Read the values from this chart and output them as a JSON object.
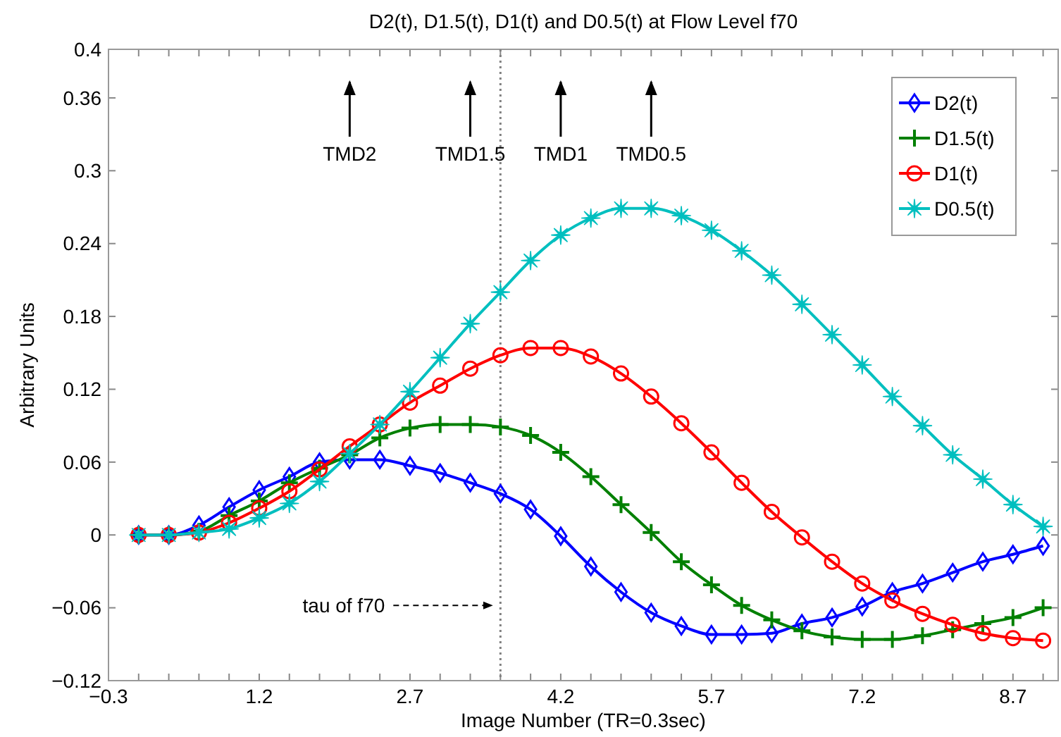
{
  "chart_data": {
    "type": "line",
    "title": "D2(t), D1.5(t), D1(t) and D0.5(t) at Flow Level f70",
    "xlabel": "Image Number (TR=0.3sec)",
    "ylabel": "Arbitrary Units",
    "x": [
      0,
      0.3,
      0.6,
      0.9,
      1.2,
      1.5,
      1.8,
      2.1,
      2.4,
      2.7,
      3.0,
      3.3,
      3.6,
      3.9,
      4.2,
      4.5,
      4.8,
      5.1,
      5.4,
      5.7,
      6.0,
      6.3,
      6.6,
      6.9,
      7.2,
      7.5,
      7.8,
      8.1,
      8.4,
      8.7,
      9.0
    ],
    "series": [
      {
        "name": "D2(t)",
        "color": "#0000ff",
        "marker": "diamond",
        "values": [
          0,
          0,
          0.008,
          0.023,
          0.037,
          0.048,
          0.06,
          0.062,
          0.062,
          0.057,
          0.051,
          0.043,
          0.034,
          0.021,
          -0.001,
          -0.026,
          -0.047,
          -0.064,
          -0.075,
          -0.082,
          -0.082,
          -0.081,
          -0.073,
          -0.068,
          -0.059,
          -0.047,
          -0.04,
          -0.031,
          -0.022,
          -0.016,
          -0.009
        ]
      },
      {
        "name": "D1.5(t)",
        "color": "#008000",
        "marker": "cross",
        "values": [
          0,
          0,
          0.003,
          0.016,
          0.028,
          0.043,
          0.055,
          0.066,
          0.08,
          0.088,
          0.091,
          0.091,
          0.089,
          0.082,
          0.068,
          0.048,
          0.025,
          0.002,
          -0.022,
          -0.041,
          -0.058,
          -0.07,
          -0.079,
          -0.084,
          -0.086,
          -0.086,
          -0.083,
          -0.078,
          -0.073,
          -0.068,
          -0.06
        ]
      },
      {
        "name": "D1(t)",
        "color": "#ff0000",
        "marker": "circle",
        "values": [
          0,
          0,
          0.002,
          0.01,
          0.022,
          0.036,
          0.054,
          0.073,
          0.091,
          0.109,
          0.123,
          0.137,
          0.148,
          0.154,
          0.154,
          0.147,
          0.133,
          0.114,
          0.092,
          0.068,
          0.043,
          0.019,
          -0.002,
          -0.022,
          -0.04,
          -0.054,
          -0.065,
          -0.074,
          -0.081,
          -0.085,
          -0.087
        ]
      },
      {
        "name": "D0.5(t)",
        "color": "#00bfbf",
        "marker": "star",
        "values": [
          0,
          0,
          0.002,
          0.005,
          0.014,
          0.026,
          0.044,
          0.067,
          0.091,
          0.118,
          0.146,
          0.174,
          0.2,
          0.226,
          0.247,
          0.261,
          0.269,
          0.269,
          0.263,
          0.251,
          0.234,
          0.214,
          0.19,
          0.165,
          0.14,
          0.114,
          0.09,
          0.066,
          0.046,
          0.025,
          0.007
        ]
      }
    ],
    "xlim": [
      -0.3,
      9.15
    ],
    "xticks": [
      -0.3,
      {
        "value": 0,
        "label": null
      },
      {
        "value": 0.3,
        "label": null
      },
      {
        "value": 0.6,
        "label": null
      },
      {
        "value": 0.9,
        "label": null
      },
      1.2,
      {
        "value": 1.5,
        "label": null
      },
      {
        "value": 1.8,
        "label": null
      },
      {
        "value": 2.1,
        "label": null
      },
      {
        "value": 2.4,
        "label": null
      },
      2.7,
      {
        "value": 3.0,
        "label": null
      },
      {
        "value": 3.3,
        "label": null
      },
      {
        "value": 3.6,
        "label": null
      },
      {
        "value": 3.9,
        "label": null
      },
      4.2,
      {
        "value": 4.5,
        "label": null
      },
      {
        "value": 4.8,
        "label": null
      },
      {
        "value": 5.1,
        "label": null
      },
      {
        "value": 5.4,
        "label": null
      },
      5.7,
      {
        "value": 6.0,
        "label": null
      },
      {
        "value": 6.3,
        "label": null
      },
      {
        "value": 6.6,
        "label": null
      },
      {
        "value": 6.9,
        "label": null
      },
      7.2,
      {
        "value": 7.5,
        "label": null
      },
      {
        "value": 7.8,
        "label": null
      },
      {
        "value": 8.1,
        "label": null
      },
      {
        "value": 8.4,
        "label": null
      },
      8.7,
      {
        "value": 9.0,
        "label": null
      }
    ],
    "ylim": [
      -0.12,
      0.4
    ],
    "yticks": [
      -0.12,
      -0.06,
      0,
      0.06,
      0.12,
      0.18,
      0.24,
      0.3,
      0.36,
      0.4
    ],
    "grid": false,
    "legend": "top right",
    "line_style": "solid",
    "ref_lines": [
      {
        "axis": "x",
        "value": 3.6,
        "label": null,
        "color": "#808080",
        "line_style": "dotted"
      }
    ],
    "annotations": [
      {
        "text": "TMD2",
        "x": 2.1
      },
      {
        "text": "TMD1.5",
        "x": 3.3
      },
      {
        "text": "TMD1",
        "x": 4.2
      },
      {
        "text": "TMD0.5",
        "x": 5.1
      },
      {
        "text": "tau of f70",
        "x": 3.6,
        "y": -0.058
      }
    ]
  }
}
